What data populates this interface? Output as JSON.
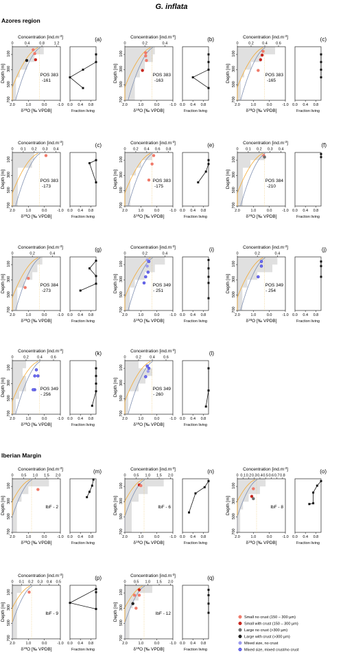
{
  "figure": {
    "title": "G. inflata",
    "regions": [
      "Azores region",
      "Iberian Margin"
    ],
    "conc_label": "Concentration [ind.m",
    "conc_sup": "-3",
    "conc_close": "]",
    "depth_label": "Depth [m]",
    "d18o_label_pre": "δ",
    "d18o_sup": "18",
    "d18o_label_post": "O [‰ VPDB]",
    "fraction_label": "Fraction living",
    "p_fraction_label": "Fraction living"
  },
  "legend": [
    {
      "label": "Small no crust (150 – 300 µm)",
      "color": "#f07a6a",
      "stroke": "#f07a6a"
    },
    {
      "label": "Small with crust (150 – 300 µm)",
      "color": "#c8261e",
      "stroke": "#c8261e"
    },
    {
      "label": "Large no crust (>300 µm)",
      "color": "#707070",
      "stroke": "#707070"
    },
    {
      "label": "Large with crust (>300 µm)",
      "color": "#222222",
      "stroke": "#222222"
    },
    {
      "label": "Mixed size, no crust",
      "color": "#9a9aee",
      "stroke": "#9a9aee"
    },
    {
      "label": "Mixed size, mixed crust/no crust",
      "color": "#6e6ef0",
      "stroke": "#3030c8"
    }
  ],
  "chart_data": [
    {
      "type": "line",
      "letter": "(a)",
      "station": "POS 383",
      "cast": "-161",
      "conc_ticks": [
        "0",
        "0.4",
        "0.8",
        "1.2"
      ],
      "conc_max": 1.3,
      "conc_steps": [
        [
          0,
          0.85
        ],
        [
          100,
          0.6
        ],
        [
          200,
          0.4
        ],
        [
          300,
          0.2
        ],
        [
          400,
          0.1
        ],
        [
          700,
          0.1
        ]
      ],
      "points": [
        {
          "d": 40,
          "o": 0.7,
          "c": 0
        },
        {
          "d": 90,
          "o": 0.6,
          "c": 0
        },
        {
          "d": 170,
          "o": 0.55,
          "c": 1
        },
        {
          "d": 180,
          "o": 1.1,
          "c": 3
        }
      ],
      "fraction": [
        [
          100,
          1.0
        ],
        [
          200,
          1.0
        ],
        [
          300,
          0.5
        ],
        [
          400,
          0.0
        ],
        [
          540,
          0.5
        ]
      ]
    },
    {
      "type": "line",
      "letter": "(b)",
      "station": "POS 383",
      "cast": "-163",
      "conc_ticks": [
        "0",
        "0.2",
        "0.4"
      ],
      "conc_max": 0.48,
      "conc_steps": [
        [
          0,
          0.3
        ],
        [
          100,
          0.28
        ],
        [
          200,
          0.2
        ],
        [
          300,
          0.15
        ],
        [
          400,
          0.1
        ],
        [
          700,
          0.1
        ]
      ],
      "points": [
        {
          "d": 80,
          "o": 0.7,
          "c": 0
        },
        {
          "d": 120,
          "o": 0.7,
          "c": 0
        },
        {
          "d": 180,
          "o": 0.65,
          "c": 0
        },
        {
          "d": 310,
          "o": 0.9,
          "c": 1
        }
      ],
      "fraction": [
        [
          100,
          1.0
        ],
        [
          200,
          1.0
        ],
        [
          300,
          1.0
        ],
        [
          400,
          0.4
        ],
        [
          540,
          1.0
        ]
      ]
    },
    {
      "type": "line",
      "letter": "(c)",
      "station": "POS 383",
      "cast": "-165",
      "conc_ticks": [
        "0",
        "0.2",
        "0.4",
        "0.6"
      ],
      "conc_max": 0.7,
      "conc_steps": [
        [
          0,
          0.55
        ],
        [
          100,
          0.35
        ],
        [
          200,
          0.2
        ],
        [
          300,
          0.1
        ],
        [
          400,
          0.05
        ],
        [
          700,
          0.05
        ]
      ],
      "points": [
        {
          "d": 60,
          "o": 0.4,
          "c": 0
        },
        {
          "d": 110,
          "o": 0.45,
          "c": 1
        },
        {
          "d": 170,
          "o": 0.55,
          "c": 1
        },
        {
          "d": 310,
          "o": 0.7,
          "c": 0
        }
      ],
      "fraction": [
        [
          100,
          1.0
        ],
        [
          200,
          1.0
        ],
        [
          300,
          1.0
        ],
        [
          400,
          1.0
        ]
      ]
    },
    {
      "type": "line",
      "letter": "(c)",
      "station": "POS 383",
      "cast": "-173",
      "conc_ticks": [
        "0",
        "0.1",
        "0.2",
        "0.3",
        "0.4"
      ],
      "conc_max": 0.44,
      "conc_steps": [
        [
          0,
          0.2
        ],
        [
          100,
          0.18
        ],
        [
          200,
          0.05
        ],
        [
          300,
          0.05
        ],
        [
          700,
          0.05
        ]
      ],
      "points": [
        {
          "d": 40,
          "o": -0.1,
          "c": 0
        }
      ],
      "fraction": [
        [
          100,
          1.0
        ],
        [
          140,
          0.75
        ],
        [
          390,
          1.0
        ]
      ]
    },
    {
      "type": "line",
      "letter": "(e)",
      "station": "POS 383",
      "cast": "-175",
      "conc_ticks": [
        "0",
        "0.2",
        "0.4",
        "0.6",
        "0.8"
      ],
      "conc_max": 0.88,
      "conc_steps": [
        [
          0,
          0.5
        ],
        [
          100,
          0.3
        ],
        [
          200,
          0.2
        ],
        [
          300,
          0.1
        ],
        [
          700,
          0.1
        ]
      ],
      "points": [
        {
          "d": 40,
          "o": 0.2,
          "c": 0
        },
        {
          "d": 150,
          "o": 0.3,
          "c": 0
        },
        {
          "d": 360,
          "o": 0.5,
          "c": 0
        }
      ],
      "fraction": [
        [
          100,
          1.0
        ],
        [
          150,
          1.0
        ],
        [
          250,
          0.9
        ],
        [
          390,
          0.6
        ]
      ]
    },
    {
      "type": "line",
      "letter": "(f)",
      "station": "POS 384",
      "cast": "-210",
      "conc_ticks": [
        "0",
        "0.1",
        "0.2",
        "0.3",
        "0.4"
      ],
      "conc_max": 0.44,
      "conc_steps": [
        [
          0,
          0.25
        ],
        [
          100,
          0.12
        ],
        [
          200,
          0.05
        ],
        [
          700,
          0.05
        ]
      ],
      "points": [
        {
          "d": 40,
          "o": 0.35,
          "c": 0
        },
        {
          "d": 60,
          "o": 0.3,
          "c": 2
        }
      ],
      "fraction": [
        [
          20,
          1.0
        ],
        [
          60,
          1.0
        ]
      ]
    },
    {
      "type": "line",
      "letter": "(g)",
      "station": "POS 384",
      "cast": "-273",
      "conc_ticks": [
        "0",
        "0.2",
        "0.4"
      ],
      "conc_max": 0.48,
      "conc_steps": [
        [
          0,
          0.3
        ],
        [
          100,
          0.25
        ],
        [
          200,
          0.2
        ],
        [
          300,
          0.12
        ],
        [
          400,
          0.05
        ],
        [
          700,
          0.05
        ]
      ],
      "points": [
        {
          "d": 280,
          "o": 1.0,
          "c": 0
        },
        {
          "d": 400,
          "o": 1.2,
          "c": 0
        }
      ],
      "fraction": [
        [
          50,
          1.0
        ],
        [
          150,
          0.75
        ],
        [
          250,
          1.0
        ],
        [
          350,
          1.0
        ],
        [
          440,
          0.4
        ]
      ]
    },
    {
      "type": "line",
      "letter": "(i)",
      "station": "POS 349",
      "cast": "- 251",
      "conc_ticks": [
        "0",
        "0.2",
        "0.4"
      ],
      "conc_max": 0.48,
      "conc_steps": [
        [
          0,
          0.4
        ],
        [
          100,
          0.3
        ],
        [
          200,
          0.2
        ],
        [
          300,
          0.1
        ],
        [
          400,
          0.05
        ],
        [
          700,
          0.05
        ]
      ],
      "points": [
        {
          "d": 40,
          "o": 0.6,
          "c": 4
        },
        {
          "d": 60,
          "o": 0.5,
          "c": 5
        },
        {
          "d": 120,
          "o": 0.6,
          "c": 4
        },
        {
          "d": 200,
          "o": 0.55,
          "c": 5
        },
        {
          "d": 260,
          "o": 0.7,
          "c": 5
        },
        {
          "d": 340,
          "o": 0.8,
          "c": 5
        }
      ],
      "fraction": [
        [
          40,
          1.0
        ],
        [
          150,
          1.0
        ],
        [
          260,
          1.0
        ],
        [
          340,
          1.0
        ],
        [
          540,
          1.0
        ]
      ]
    },
    {
      "type": "line",
      "letter": "(j)",
      "station": "POS 349",
      "cast": "- 254",
      "conc_ticks": [
        "0",
        "0.2",
        "0.4"
      ],
      "conc_max": 0.48,
      "conc_steps": [
        [
          0,
          0.4
        ],
        [
          100,
          0.35
        ],
        [
          200,
          0.2
        ],
        [
          300,
          0.1
        ],
        [
          400,
          0.05
        ],
        [
          700,
          0.05
        ]
      ],
      "points": [
        {
          "d": 60,
          "o": 0.5,
          "c": 5
        },
        {
          "d": 120,
          "o": 0.5,
          "c": 5
        },
        {
          "d": 260,
          "o": 0.7,
          "c": 5
        }
      ],
      "fraction": [
        [
          60,
          1.0
        ],
        [
          120,
          1.0
        ],
        [
          260,
          1.0
        ]
      ]
    },
    {
      "type": "line",
      "letter": "(k)",
      "station": "POS 349",
      "cast": "- 256",
      "conc_ticks": [
        "0",
        "0.2",
        "0.4",
        "0.6"
      ],
      "conc_max": 0.7,
      "conc_steps": [
        [
          0,
          0.2
        ],
        [
          100,
          0.15
        ],
        [
          200,
          0.2
        ],
        [
          300,
          0.2
        ],
        [
          400,
          0.1
        ],
        [
          500,
          0.05
        ],
        [
          700,
          0.05
        ]
      ],
      "points": [
        {
          "d": 120,
          "o": 0.5,
          "c": 5
        },
        {
          "d": 200,
          "o": 0.6,
          "c": 5
        },
        {
          "d": 200,
          "o": 0.4,
          "c": 5
        },
        {
          "d": 380,
          "o": 0.6,
          "c": 5
        },
        {
          "d": 380,
          "o": 0.7,
          "c": 5
        }
      ],
      "fraction": [
        [
          100,
          1.0
        ],
        [
          200,
          1.0
        ],
        [
          300,
          1.0
        ],
        [
          400,
          1.0
        ],
        [
          590,
          0.85
        ]
      ]
    },
    {
      "type": "line",
      "letter": "(l)",
      "station": "POS 349",
      "cast": "- 260",
      "conc_ticks": [
        "0",
        "0.2",
        "0.4",
        "0.6"
      ],
      "conc_max": 0.7,
      "conc_steps": [
        [
          0,
          0.2
        ],
        [
          100,
          0.4
        ],
        [
          200,
          0.3
        ],
        [
          300,
          0.2
        ],
        [
          400,
          0.05
        ],
        [
          700,
          0.05
        ]
      ],
      "points": [
        {
          "d": 70,
          "o": 0.6,
          "c": 5
        },
        {
          "d": 100,
          "o": 0.5,
          "c": 5
        },
        {
          "d": 140,
          "o": 0.55,
          "c": 4
        },
        {
          "d": 210,
          "o": 0.7,
          "c": 5
        }
      ],
      "fraction": [
        [
          100,
          1.0
        ],
        [
          390,
          1.0
        ],
        [
          600,
          0.9
        ]
      ]
    },
    {
      "type": "line",
      "letter": "(m)",
      "station": "IbF - 2",
      "cast": "",
      "conc_ticks": [
        "0",
        "0.5",
        "1.0",
        "1.5",
        "2.0"
      ],
      "conc_max": 2.1,
      "conc_steps": [
        [
          0,
          1.6
        ],
        [
          100,
          0.7
        ],
        [
          200,
          0.4
        ],
        [
          300,
          0.2
        ],
        [
          700,
          0.2
        ]
      ],
      "points": [
        {
          "d": 140,
          "o": 0.4,
          "c": 0
        }
      ],
      "fraction": [
        [
          10,
          0.9
        ],
        [
          90,
          0.85
        ],
        [
          170,
          0.75
        ],
        [
          240,
          0.65
        ]
      ]
    },
    {
      "type": "line",
      "letter": "(n)",
      "station": "IbF - 6",
      "cast": "",
      "conc_ticks": [
        "0",
        "0.5",
        "1.0",
        "1.5",
        "2.0"
      ],
      "conc_max": 2.1,
      "conc_steps": [
        [
          0,
          1.7
        ],
        [
          100,
          1.0
        ],
        [
          200,
          0.6
        ],
        [
          300,
          0.3
        ],
        [
          700,
          0.3
        ]
      ],
      "points": [
        {
          "d": 80,
          "o": 1.1,
          "c": 1
        },
        {
          "d": 90,
          "o": 1.0,
          "c": 0
        }
      ],
      "fraction": [
        [
          30,
          1.0
        ],
        [
          110,
          0.85
        ],
        [
          190,
          0.5
        ],
        [
          440,
          0.25
        ]
      ]
    },
    {
      "type": "line",
      "letter": "(o)",
      "station": "IbF - 8",
      "cast": "",
      "conc_ticks": [
        "0",
        "0.1",
        "0.2",
        "0.3",
        "0.4",
        "0.5",
        "0.6",
        "0.7",
        "0.8"
      ],
      "conc_max": 0.85,
      "conc_steps": [
        [
          0,
          0.5
        ],
        [
          100,
          0.4
        ],
        [
          200,
          0.2
        ],
        [
          300,
          0.1
        ],
        [
          400,
          0.05
        ],
        [
          700,
          0.05
        ]
      ],
      "points": [
        {
          "d": 130,
          "o": 1.0,
          "c": 0
        },
        {
          "d": 230,
          "o": 1.1,
          "c": 1
        },
        {
          "d": 260,
          "o": 1.0,
          "c": 2
        }
      ],
      "fraction": [
        [
          30,
          1.0
        ],
        [
          90,
          0.85
        ],
        [
          180,
          0.7
        ],
        [
          320,
          0.7
        ],
        [
          330,
          0.55
        ]
      ]
    },
    {
      "type": "line",
      "letter": "(p)",
      "station": "IbF - 9",
      "cast": "",
      "conc_ticks": [
        "0",
        "0.1",
        "0.2",
        "0.3",
        "0.4",
        "0.5"
      ],
      "conc_max": 0.52,
      "conc_steps": [
        [
          0,
          0.1
        ],
        [
          100,
          0.05
        ],
        [
          700,
          0.05
        ]
      ],
      "points": [
        {
          "d": 90,
          "o": 0.95,
          "c": 0
        }
      ],
      "fraction": [
        [
          50,
          1.0
        ],
        [
          230,
          0.0
        ],
        [
          310,
          1.0
        ],
        [
          90,
          1.0
        ]
      ]
    },
    {
      "type": "line",
      "letter": "(q)",
      "station": "IbF - 12",
      "cast": "",
      "conc_ticks": [
        "0",
        "0.5",
        "1.0",
        "1.5",
        "2.0"
      ],
      "conc_max": 2.1,
      "conc_steps": [
        [
          0,
          1.2
        ],
        [
          100,
          0.6
        ],
        [
          200,
          0.35
        ],
        [
          300,
          0.2
        ],
        [
          700,
          0.2
        ]
      ],
      "points": [
        {
          "d": 60,
          "o": 1.1,
          "c": 1
        },
        {
          "d": 130,
          "o": 1.4,
          "c": 0
        },
        {
          "d": 130,
          "o": 1.1,
          "c": 0
        },
        {
          "d": 240,
          "o": 1.5,
          "c": 3
        },
        {
          "d": 300,
          "o": 1.3,
          "c": 0
        }
      ],
      "fraction": [
        [
          60,
          1.0
        ],
        [
          130,
          1.0
        ],
        [
          240,
          1.0
        ],
        [
          360,
          1.0
        ]
      ]
    }
  ],
  "axes": {
    "d18o_ticks": [
      "2.0",
      "1.0",
      "0.0",
      "-1.0"
    ],
    "depth_ticks": [
      "100",
      "300",
      "500",
      "700"
    ],
    "frac_ticks": [
      "0.0",
      "0.4",
      "0.8"
    ]
  }
}
